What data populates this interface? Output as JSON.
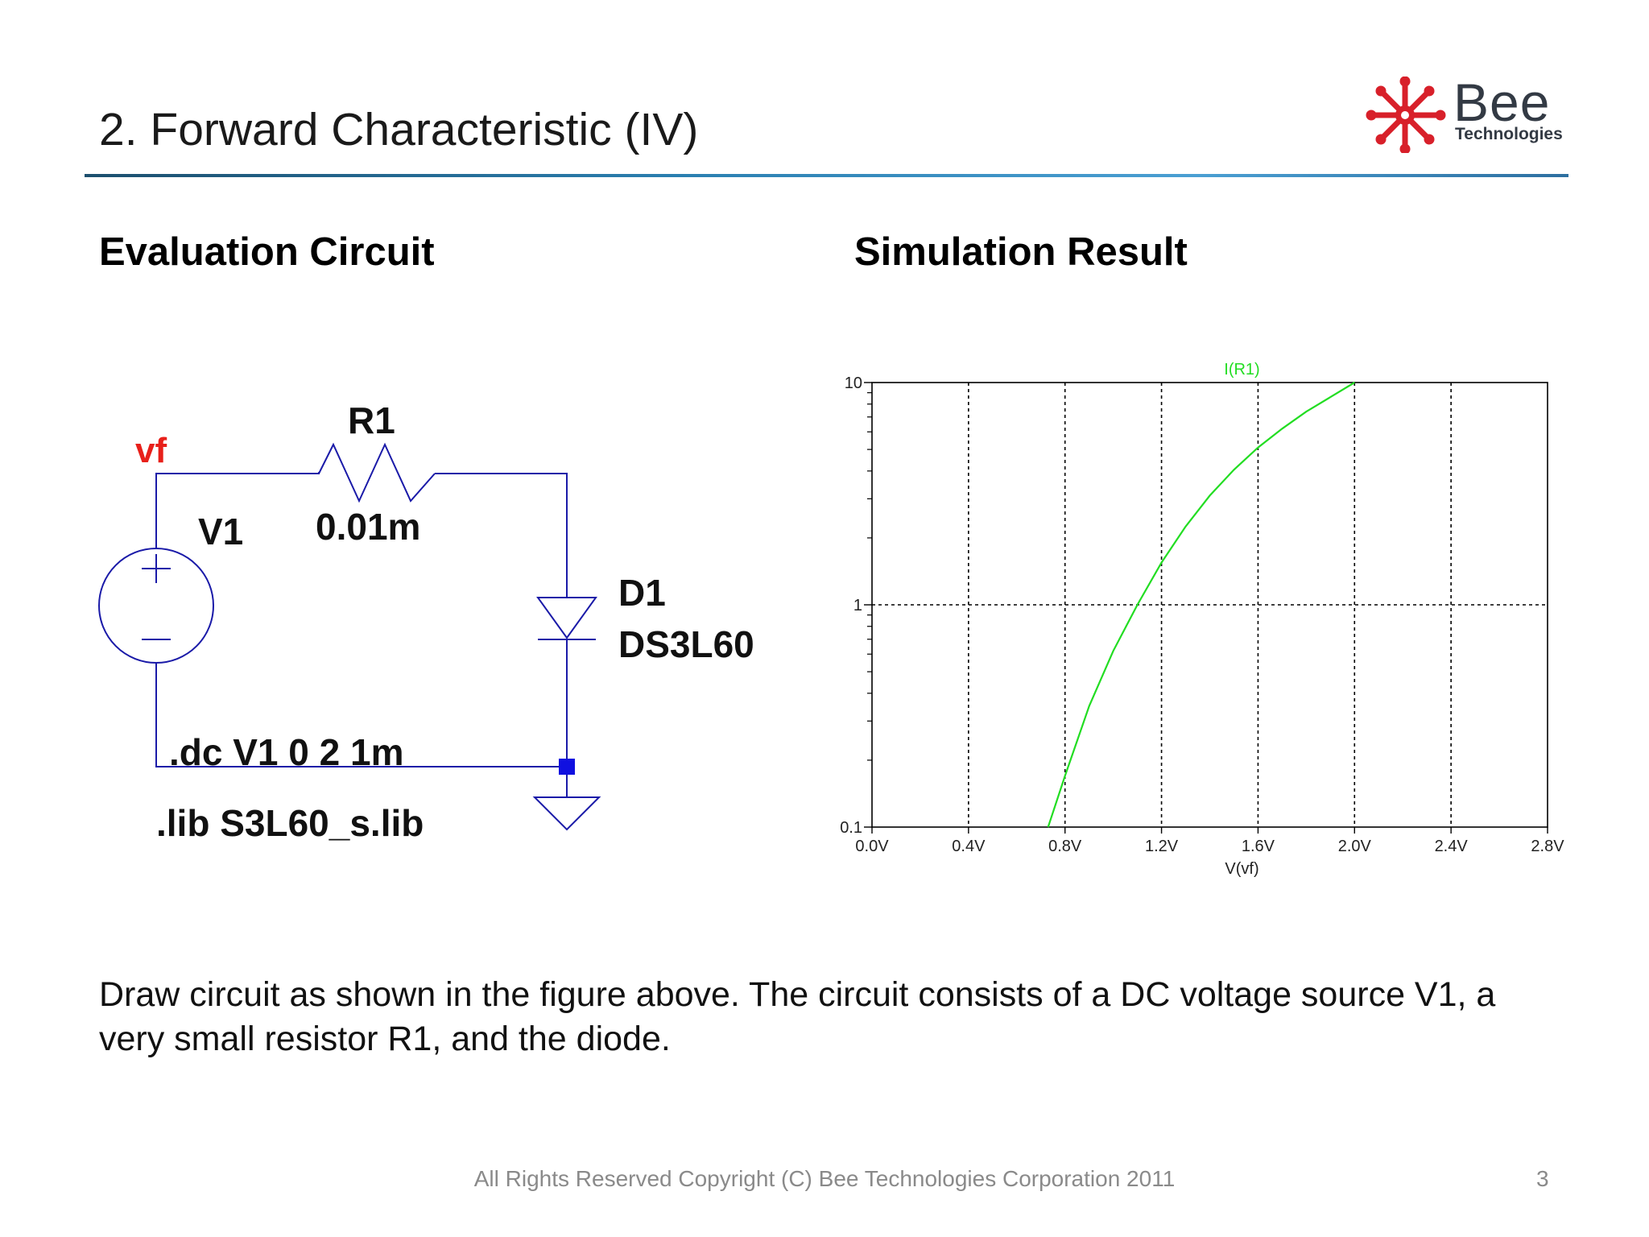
{
  "title": "2. Forward Characteristic (IV)",
  "logo": {
    "brand": "Bee",
    "sub": "Technologies",
    "star_color": "#d8202a"
  },
  "sections": {
    "left": "Evaluation Circuit",
    "right": "Simulation Result"
  },
  "circuit": {
    "node_label": "vf",
    "resistor_name": "R1",
    "resistor_value": "0.01m",
    "source_name": "V1",
    "source_plus": "+",
    "source_minus": "−",
    "diode_name": "D1",
    "diode_model": "DS3L60",
    "directive_dc": ".dc V1 0 2 1m",
    "directive_lib": ".lib S3L60_s.lib",
    "wire_color": "#1a1aa8",
    "label_color": "#e8201a"
  },
  "chart_data": {
    "type": "line",
    "title": "",
    "series": [
      {
        "name": "I(R1)",
        "color": "#22dd22",
        "x": [
          0.73,
          0.8,
          0.9,
          1.0,
          1.1,
          1.2,
          1.3,
          1.4,
          1.5,
          1.6,
          1.7,
          1.8,
          1.9,
          2.0
        ],
        "y": [
          0.1,
          0.17,
          0.35,
          0.62,
          1.0,
          1.55,
          2.25,
          3.1,
          4.05,
          5.1,
          6.2,
          7.4,
          8.6,
          10.0
        ]
      }
    ],
    "xlabel": "V(vf)",
    "ylabel": "",
    "xlim": [
      0.0,
      2.8
    ],
    "ylim": [
      0.1,
      10
    ],
    "yscale": "log",
    "x_ticks": [
      "0.0V",
      "0.4V",
      "0.8V",
      "1.2V",
      "1.6V",
      "2.0V",
      "2.4V",
      "2.8V"
    ],
    "y_ticks": [
      "0.1",
      "1",
      "10"
    ],
    "grid": true,
    "legend": "top-center"
  },
  "body": "Draw circuit as shown in the figure above. The circuit consists of a DC voltage source V1, a very small resistor R1, and the diode.",
  "footer": "All Rights Reserved Copyright (C) Bee Technologies Corporation 2011",
  "page_number": "3"
}
